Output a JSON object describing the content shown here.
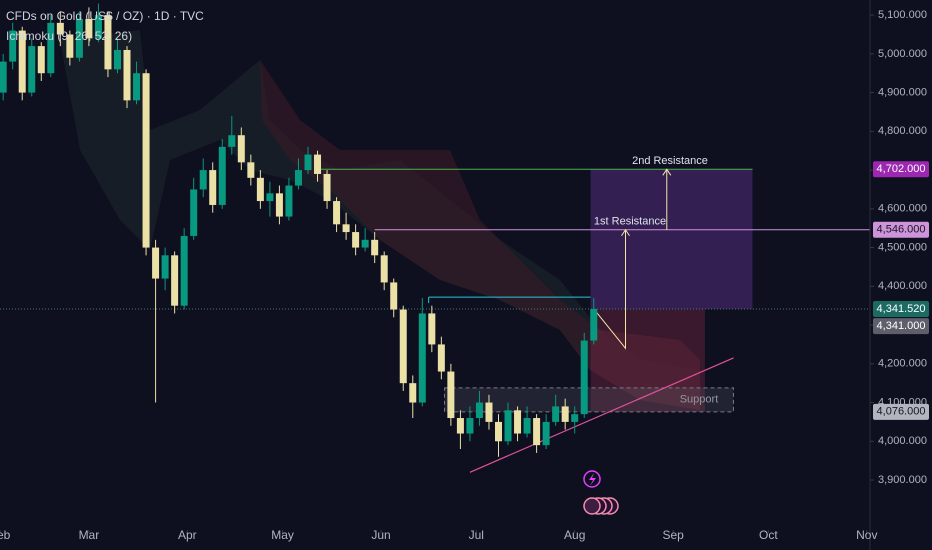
{
  "chart_data": {
    "type": "candlestick",
    "title": "CFDs on Gold (US$ / OZ) · 1D · TVC",
    "subtitle": "Ichimoku (9, 26, 52, 26)",
    "up_color": "#089981",
    "down_color": "#ebe0a6",
    "x": [
      1,
      4,
      7,
      10,
      13,
      16,
      19,
      22,
      25,
      28,
      31,
      34,
      37,
      40,
      43,
      46,
      49,
      52,
      55,
      58,
      61,
      64,
      67,
      70,
      73,
      76,
      79,
      82,
      85,
      88,
      91,
      94,
      97,
      100,
      103,
      106,
      109,
      112,
      115,
      118,
      121,
      124,
      127,
      130,
      133,
      136,
      139,
      142,
      145,
      148,
      151,
      154,
      157,
      160,
      163,
      166,
      169,
      172,
      175,
      178,
      181,
      184,
      187
    ],
    "open": [
      4900,
      4980,
      5060,
      4900,
      5020,
      4950,
      5080,
      5050,
      4990,
      5090,
      5040,
      5100,
      4960,
      5010,
      4880,
      4950,
      4500,
      4420,
      4480,
      4350,
      4530,
      4650,
      4700,
      4610,
      4760,
      4790,
      4720,
      4680,
      4620,
      4640,
      4580,
      4660,
      4700,
      4740,
      4690,
      4620,
      4560,
      4540,
      4500,
      4520,
      4480,
      4410,
      4340,
      4150,
      4100,
      4330,
      4250,
      4180,
      4060,
      4020,
      4060,
      4100,
      4050,
      4000,
      4080,
      4020,
      4060,
      3990,
      4050,
      4090,
      4050,
      4070,
      4260
    ],
    "high": [
      5000,
      5080,
      5070,
      5040,
      5030,
      5100,
      5110,
      5060,
      5110,
      5120,
      5130,
      5110,
      5040,
      5020,
      4980,
      4960,
      4520,
      4500,
      4490,
      4550,
      4680,
      4730,
      4720,
      4780,
      4840,
      4810,
      4740,
      4700,
      4670,
      4660,
      4680,
      4730,
      4760,
      4750,
      4700,
      4630,
      4590,
      4560,
      4550,
      4540,
      4490,
      4420,
      4350,
      4170,
      4370,
      4350,
      4270,
      4200,
      4080,
      4090,
      4130,
      4120,
      4070,
      4100,
      4090,
      4090,
      4070,
      4070,
      4120,
      4110,
      4090,
      4280,
      4370
    ],
    "low": [
      4880,
      4960,
      4880,
      4890,
      4930,
      4940,
      5020,
      4970,
      4980,
      5020,
      5030,
      4940,
      4950,
      4860,
      4870,
      4480,
      4100,
      4390,
      4330,
      4340,
      4520,
      4630,
      4590,
      4600,
      4740,
      4700,
      4660,
      4600,
      4580,
      4560,
      4570,
      4650,
      4690,
      4670,
      4600,
      4540,
      4520,
      4480,
      4490,
      4460,
      4390,
      4320,
      4130,
      4060,
      4090,
      4230,
      4160,
      4040,
      3980,
      4000,
      4040,
      4030,
      3960,
      3990,
      4000,
      4010,
      3970,
      3980,
      4040,
      4030,
      4020,
      4060,
      4250
    ],
    "close": [
      4980,
      5060,
      4900,
      5020,
      4950,
      5080,
      5050,
      4990,
      5090,
      5040,
      5100,
      4960,
      5010,
      4880,
      4950,
      4500,
      4420,
      4480,
      4350,
      4530,
      4650,
      4700,
      4610,
      4760,
      4790,
      4720,
      4680,
      4620,
      4640,
      4580,
      4660,
      4700,
      4740,
      4690,
      4620,
      4560,
      4540,
      4500,
      4520,
      4480,
      4410,
      4340,
      4150,
      4100,
      4330,
      4250,
      4180,
      4060,
      4020,
      4060,
      4100,
      4050,
      4000,
      4080,
      4020,
      4060,
      3990,
      4050,
      4090,
      4050,
      4070,
      4260,
      4341.52
    ],
    "xlim": [
      0,
      274
    ],
    "ylim": [
      3771,
      5139
    ],
    "xticks": [
      {
        "value": 0,
        "label": "Feb"
      },
      {
        "value": 28,
        "label": "Mar"
      },
      {
        "value": 59,
        "label": "Apr"
      },
      {
        "value": 89,
        "label": "May"
      },
      {
        "value": 120,
        "label": "Jun"
      },
      {
        "value": 150,
        "label": "Jul"
      },
      {
        "value": 181,
        "label": "Aug"
      },
      {
        "value": 212,
        "label": "Sep"
      },
      {
        "value": 242,
        "label": "Oct"
      },
      {
        "value": 273,
        "label": "Nov"
      }
    ],
    "yticks": [
      {
        "value": 3900,
        "label": "3,900.000"
      },
      {
        "value": 4000,
        "label": "4,000.000"
      },
      {
        "value": 4100,
        "label": "4,100.000"
      },
      {
        "value": 4200,
        "label": "4,200.000"
      },
      {
        "value": 4300,
        "label": "4,300.000"
      },
      {
        "value": 4400,
        "label": "4,400.000"
      },
      {
        "value": 4500,
        "label": "4,500.000"
      },
      {
        "value": 4600,
        "label": "4,600.000"
      },
      {
        "value": 4700,
        "label": "4,700.000"
      },
      {
        "value": 4800,
        "label": "4,800.000"
      },
      {
        "value": 4900,
        "label": "4,900.000"
      },
      {
        "value": 5000,
        "label": "5,000.000"
      },
      {
        "value": 5100,
        "label": "5,100.000"
      }
    ],
    "price_labels": [
      {
        "value": 4702,
        "label": "4,702.000",
        "bg": "#9c27b0",
        "fg": "#ffffff"
      },
      {
        "value": 4546,
        "label": "4,546.000",
        "bg": "#ce93d8",
        "fg": "#131722"
      },
      {
        "value": 4341.52,
        "label": "4,341.520",
        "bg": "#1b6b63",
        "fg": "#ffffff"
      },
      {
        "value": 4341,
        "label": "4,341.000",
        "bg": "#5d606b",
        "fg": "#ffffff"
      },
      {
        "value": 4076,
        "label": "4,076.000",
        "bg": "#b2b5be",
        "fg": "#131722"
      }
    ],
    "resistance_2": {
      "label": "2nd Resistance",
      "value": 4702,
      "x": [
        101,
        237
      ],
      "color": "#4caf50"
    },
    "resistance_1": {
      "label": "1st Resistance",
      "value": 4546,
      "x": [
        118,
        274
      ],
      "color": "#ce93d8"
    },
    "target_box": {
      "x": [
        186,
        237
      ],
      "y": [
        4341.52,
        4702
      ],
      "color": "#7b3fb5"
    },
    "stop_box": {
      "x": [
        186,
        222
      ],
      "y": [
        4076,
        4341.52
      ],
      "color": "#8b2f4a"
    },
    "support": {
      "label": "Support",
      "y": [
        4076,
        4138
      ],
      "x": [
        140,
        231
      ]
    },
    "prior_high": {
      "value": 4372,
      "x": [
        135,
        186
      ],
      "color": "#26c6da"
    },
    "trendline": {
      "x": [
        148,
        231
      ],
      "y": [
        3920,
        4215
      ],
      "color": "#e0529c"
    },
    "projection": {
      "x": [
        187,
        197,
        197,
        210,
        210
      ],
      "y": [
        4341.52,
        4240,
        4546,
        4546,
        4702
      ]
    }
  }
}
